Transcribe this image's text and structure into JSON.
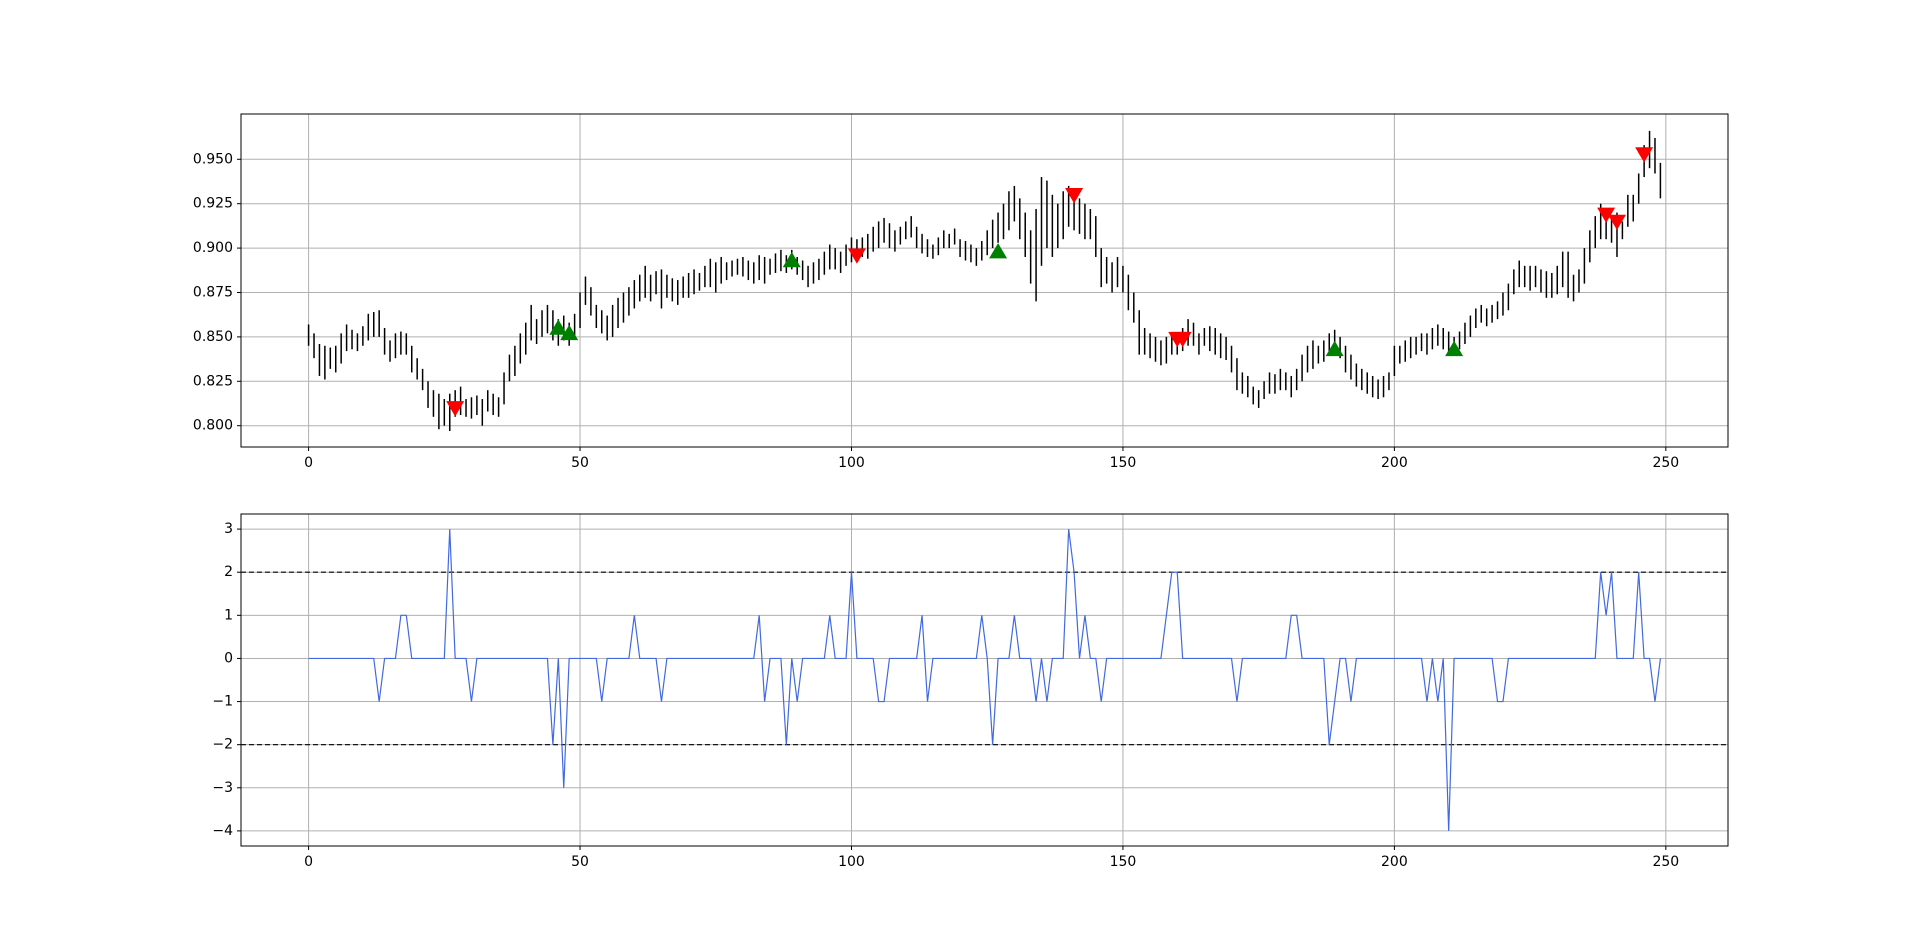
{
  "chart_data": [
    {
      "type": "hilo",
      "color": "#000000",
      "x": [
        0,
        1,
        2,
        3,
        4,
        5,
        6,
        7,
        8,
        9,
        10,
        11,
        12,
        13,
        14,
        15,
        16,
        17,
        18,
        19,
        20,
        21,
        22,
        23,
        24,
        25,
        26,
        27,
        28,
        29,
        30,
        31,
        32,
        33,
        34,
        35,
        36,
        37,
        38,
        39,
        40,
        41,
        42,
        43,
        44,
        45,
        46,
        47,
        48,
        49,
        50,
        51,
        52,
        53,
        54,
        55,
        56,
        57,
        58,
        59,
        60,
        61,
        62,
        63,
        64,
        65,
        66,
        67,
        68,
        69,
        70,
        71,
        72,
        73,
        74,
        75,
        76,
        77,
        78,
        79,
        80,
        81,
        82,
        83,
        84,
        85,
        86,
        87,
        88,
        89,
        90,
        91,
        92,
        93,
        94,
        95,
        96,
        97,
        98,
        99,
        100,
        101,
        102,
        103,
        104,
        105,
        106,
        107,
        108,
        109,
        110,
        111,
        112,
        113,
        114,
        115,
        116,
        117,
        118,
        119,
        120,
        121,
        122,
        123,
        124,
        125,
        126,
        127,
        128,
        129,
        130,
        131,
        132,
        133,
        134,
        135,
        136,
        137,
        138,
        139,
        140,
        141,
        142,
        143,
        144,
        145,
        146,
        147,
        148,
        149,
        150,
        151,
        152,
        153,
        154,
        155,
        156,
        157,
        158,
        159,
        160,
        161,
        162,
        163,
        164,
        165,
        166,
        167,
        168,
        169,
        170,
        171,
        172,
        173,
        174,
        175,
        176,
        177,
        178,
        179,
        180,
        181,
        182,
        183,
        184,
        185,
        186,
        187,
        188,
        189,
        190,
        191,
        192,
        193,
        194,
        195,
        196,
        197,
        198,
        199,
        200,
        201,
        202,
        203,
        204,
        205,
        206,
        207,
        208,
        209,
        210,
        211,
        212,
        213,
        214,
        215,
        216,
        217,
        218,
        219,
        220,
        221,
        222,
        223,
        224,
        225,
        226,
        227,
        228,
        229,
        230,
        231,
        232,
        233,
        234,
        235,
        236,
        237,
        238,
        239,
        240,
        241,
        242,
        243,
        244,
        245,
        246,
        247,
        248,
        249
      ],
      "high": [
        0.857,
        0.852,
        0.846,
        0.845,
        0.844,
        0.845,
        0.852,
        0.857,
        0.854,
        0.852,
        0.856,
        0.863,
        0.864,
        0.865,
        0.855,
        0.848,
        0.852,
        0.853,
        0.852,
        0.845,
        0.838,
        0.832,
        0.825,
        0.82,
        0.818,
        0.815,
        0.818,
        0.82,
        0.822,
        0.815,
        0.816,
        0.817,
        0.815,
        0.82,
        0.818,
        0.816,
        0.83,
        0.84,
        0.845,
        0.852,
        0.858,
        0.868,
        0.86,
        0.865,
        0.868,
        0.865,
        0.86,
        0.862,
        0.858,
        0.863,
        0.875,
        0.884,
        0.878,
        0.868,
        0.865,
        0.862,
        0.868,
        0.872,
        0.875,
        0.878,
        0.882,
        0.885,
        0.89,
        0.885,
        0.887,
        0.888,
        0.885,
        0.883,
        0.882,
        0.884,
        0.886,
        0.888,
        0.886,
        0.89,
        0.894,
        0.892,
        0.895,
        0.892,
        0.893,
        0.894,
        0.895,
        0.893,
        0.892,
        0.896,
        0.895,
        0.894,
        0.897,
        0.899,
        0.896,
        0.899,
        0.895,
        0.893,
        0.89,
        0.892,
        0.894,
        0.898,
        0.902,
        0.9,
        0.898,
        0.902,
        0.906,
        0.905,
        0.906,
        0.908,
        0.912,
        0.915,
        0.917,
        0.914,
        0.91,
        0.912,
        0.915,
        0.918,
        0.912,
        0.908,
        0.905,
        0.902,
        0.906,
        0.91,
        0.908,
        0.911,
        0.905,
        0.904,
        0.902,
        0.9,
        0.904,
        0.91,
        0.916,
        0.92,
        0.925,
        0.932,
        0.935,
        0.928,
        0.92,
        0.91,
        0.922,
        0.94,
        0.938,
        0.93,
        0.925,
        0.932,
        0.935,
        0.93,
        0.928,
        0.925,
        0.922,
        0.918,
        0.9,
        0.895,
        0.892,
        0.895,
        0.89,
        0.885,
        0.875,
        0.865,
        0.855,
        0.852,
        0.85,
        0.848,
        0.85,
        0.852,
        0.852,
        0.855,
        0.86,
        0.858,
        0.852,
        0.855,
        0.856,
        0.855,
        0.852,
        0.85,
        0.845,
        0.838,
        0.83,
        0.828,
        0.822,
        0.82,
        0.825,
        0.83,
        0.829,
        0.832,
        0.83,
        0.828,
        0.832,
        0.84,
        0.845,
        0.848,
        0.845,
        0.848,
        0.852,
        0.854,
        0.85,
        0.845,
        0.84,
        0.835,
        0.832,
        0.83,
        0.828,
        0.826,
        0.828,
        0.83,
        0.845,
        0.845,
        0.848,
        0.85,
        0.85,
        0.852,
        0.852,
        0.855,
        0.857,
        0.855,
        0.853,
        0.85,
        0.853,
        0.858,
        0.862,
        0.866,
        0.868,
        0.866,
        0.868,
        0.87,
        0.875,
        0.88,
        0.888,
        0.893,
        0.89,
        0.89,
        0.89,
        0.888,
        0.887,
        0.886,
        0.89,
        0.898,
        0.898,
        0.885,
        0.888,
        0.9,
        0.91,
        0.918,
        0.925,
        0.922,
        0.918,
        0.92,
        0.915,
        0.93,
        0.93,
        0.942,
        0.958,
        0.966,
        0.962,
        0.948
      ],
      "low": [
        0.845,
        0.838,
        0.828,
        0.826,
        0.832,
        0.83,
        0.835,
        0.842,
        0.843,
        0.842,
        0.845,
        0.848,
        0.85,
        0.85,
        0.84,
        0.836,
        0.838,
        0.84,
        0.84,
        0.83,
        0.826,
        0.82,
        0.81,
        0.805,
        0.798,
        0.8,
        0.797,
        0.805,
        0.806,
        0.805,
        0.804,
        0.806,
        0.8,
        0.808,
        0.806,
        0.805,
        0.812,
        0.825,
        0.828,
        0.835,
        0.84,
        0.848,
        0.846,
        0.85,
        0.852,
        0.848,
        0.845,
        0.848,
        0.845,
        0.85,
        0.855,
        0.868,
        0.862,
        0.855,
        0.852,
        0.848,
        0.85,
        0.855,
        0.858,
        0.862,
        0.866,
        0.87,
        0.872,
        0.87,
        0.874,
        0.866,
        0.872,
        0.87,
        0.868,
        0.872,
        0.872,
        0.874,
        0.876,
        0.878,
        0.878,
        0.875,
        0.88,
        0.882,
        0.884,
        0.885,
        0.884,
        0.882,
        0.88,
        0.882,
        0.88,
        0.885,
        0.886,
        0.887,
        0.886,
        0.888,
        0.885,
        0.882,
        0.878,
        0.88,
        0.882,
        0.885,
        0.888,
        0.888,
        0.886,
        0.89,
        0.892,
        0.893,
        0.895,
        0.894,
        0.898,
        0.9,
        0.903,
        0.9,
        0.898,
        0.902,
        0.905,
        0.906,
        0.9,
        0.897,
        0.895,
        0.894,
        0.896,
        0.9,
        0.9,
        0.902,
        0.895,
        0.893,
        0.892,
        0.89,
        0.893,
        0.896,
        0.9,
        0.903,
        0.905,
        0.91,
        0.915,
        0.905,
        0.895,
        0.88,
        0.87,
        0.89,
        0.9,
        0.895,
        0.9,
        0.905,
        0.912,
        0.91,
        0.908,
        0.905,
        0.905,
        0.895,
        0.878,
        0.88,
        0.875,
        0.878,
        0.875,
        0.865,
        0.858,
        0.84,
        0.84,
        0.838,
        0.836,
        0.834,
        0.835,
        0.84,
        0.84,
        0.842,
        0.845,
        0.845,
        0.84,
        0.845,
        0.842,
        0.84,
        0.838,
        0.837,
        0.83,
        0.82,
        0.818,
        0.816,
        0.812,
        0.81,
        0.815,
        0.818,
        0.818,
        0.82,
        0.82,
        0.816,
        0.82,
        0.825,
        0.83,
        0.832,
        0.835,
        0.836,
        0.84,
        0.842,
        0.838,
        0.83,
        0.826,
        0.822,
        0.82,
        0.818,
        0.816,
        0.815,
        0.816,
        0.82,
        0.828,
        0.835,
        0.836,
        0.838,
        0.84,
        0.842,
        0.84,
        0.843,
        0.845,
        0.843,
        0.84,
        0.842,
        0.843,
        0.846,
        0.85,
        0.855,
        0.858,
        0.856,
        0.858,
        0.86,
        0.862,
        0.865,
        0.874,
        0.878,
        0.878,
        0.876,
        0.878,
        0.875,
        0.872,
        0.872,
        0.874,
        0.878,
        0.872,
        0.87,
        0.875,
        0.88,
        0.892,
        0.9,
        0.905,
        0.905,
        0.903,
        0.895,
        0.905,
        0.912,
        0.915,
        0.925,
        0.94,
        0.945,
        0.942,
        0.928
      ],
      "sell_signals": {
        "color": "#ff0000",
        "x": [
          27,
          101,
          141,
          160,
          161,
          239,
          241,
          246
        ],
        "y": [
          0.81,
          0.896,
          0.93,
          0.849,
          0.849,
          0.919,
          0.915,
          0.953
        ]
      },
      "buy_signals": {
        "color": "#008000",
        "x": [
          46,
          48,
          89,
          127,
          189,
          211
        ],
        "y": [
          0.855,
          0.852,
          0.893,
          0.898,
          0.843,
          0.843
        ]
      },
      "xlim": [
        -12.45,
        261.45
      ],
      "ylim": [
        0.788,
        0.9755
      ],
      "xticks": [
        0,
        50,
        100,
        150,
        200,
        250
      ],
      "yticks": [
        {
          "value": 0.8,
          "label": "0.800"
        },
        0.825,
        {
          "value": 0.85,
          "label": "0.850"
        },
        0.875,
        {
          "value": 0.9,
          "label": "0.900"
        },
        0.925,
        {
          "value": 0.95,
          "label": "0.950"
        }
      ],
      "grid": true
    },
    {
      "type": "line",
      "color": "#4169e1",
      "x": [
        0,
        1,
        2,
        3,
        4,
        5,
        6,
        7,
        8,
        9,
        10,
        11,
        12,
        13,
        14,
        15,
        16,
        17,
        18,
        19,
        20,
        21,
        22,
        23,
        24,
        25,
        26,
        27,
        28,
        29,
        30,
        31,
        32,
        33,
        34,
        35,
        36,
        37,
        38,
        39,
        40,
        41,
        42,
        43,
        44,
        45,
        46,
        47,
        48,
        49,
        50,
        51,
        52,
        53,
        54,
        55,
        56,
        57,
        58,
        59,
        60,
        61,
        62,
        63,
        64,
        65,
        66,
        67,
        68,
        69,
        70,
        71,
        72,
        73,
        74,
        75,
        76,
        77,
        78,
        79,
        80,
        81,
        82,
        83,
        84,
        85,
        86,
        87,
        88,
        89,
        90,
        91,
        92,
        93,
        94,
        95,
        96,
        97,
        98,
        99,
        100,
        101,
        102,
        103,
        104,
        105,
        106,
        107,
        108,
        109,
        110,
        111,
        112,
        113,
        114,
        115,
        116,
        117,
        118,
        119,
        120,
        121,
        122,
        123,
        124,
        125,
        126,
        127,
        128,
        129,
        130,
        131,
        132,
        133,
        134,
        135,
        136,
        137,
        138,
        139,
        140,
        141,
        142,
        143,
        144,
        145,
        146,
        147,
        148,
        149,
        150,
        151,
        152,
        153,
        154,
        155,
        156,
        157,
        158,
        159,
        160,
        161,
        162,
        163,
        164,
        165,
        166,
        167,
        168,
        169,
        170,
        171,
        172,
        173,
        174,
        175,
        176,
        177,
        178,
        179,
        180,
        181,
        182,
        183,
        184,
        185,
        186,
        187,
        188,
        189,
        190,
        191,
        192,
        193,
        194,
        195,
        196,
        197,
        198,
        199,
        200,
        201,
        202,
        203,
        204,
        205,
        206,
        207,
        208,
        209,
        210,
        211,
        212,
        213,
        214,
        215,
        216,
        217,
        218,
        219,
        220,
        221,
        222,
        223,
        224,
        225,
        226,
        227,
        228,
        229,
        230,
        231,
        232,
        233,
        234,
        235,
        236,
        237,
        238,
        239,
        240,
        241,
        242,
        243,
        244,
        245,
        246,
        247,
        248,
        249
      ],
      "values": [
        0,
        0,
        0,
        0,
        0,
        0,
        0,
        0,
        0,
        0,
        0,
        0,
        0,
        -1,
        0,
        0,
        0,
        1,
        1,
        0,
        0,
        0,
        0,
        0,
        0,
        0,
        3,
        0,
        0,
        0,
        -1,
        0,
        0,
        0,
        0,
        0,
        0,
        0,
        0,
        0,
        0,
        0,
        0,
        0,
        0,
        -2,
        0,
        -3,
        0,
        0,
        0,
        0,
        0,
        0,
        -1,
        0,
        0,
        0,
        0,
        0,
        1,
        0,
        0,
        0,
        0,
        -1,
        0,
        0,
        0,
        0,
        0,
        0,
        0,
        0,
        0,
        0,
        0,
        0,
        0,
        0,
        0,
        0,
        0,
        1,
        -1,
        0,
        0,
        0,
        -2,
        0,
        -1,
        0,
        0,
        0,
        0,
        0,
        1,
        0,
        0,
        0,
        2,
        0,
        0,
        0,
        0,
        -1,
        -1,
        0,
        0,
        0,
        0,
        0,
        0,
        1,
        -1,
        0,
        0,
        0,
        0,
        0,
        0,
        0,
        0,
        0,
        1,
        0,
        -2,
        0,
        0,
        0,
        1,
        0,
        0,
        0,
        -1,
        0,
        -1,
        0,
        0,
        0,
        3,
        2,
        0,
        1,
        0,
        0,
        -1,
        0,
        0,
        0,
        0,
        0,
        0,
        0,
        0,
        0,
        0,
        0,
        1,
        2,
        2,
        0,
        0,
        0,
        0,
        0,
        0,
        0,
        0,
        0,
        0,
        -1,
        0,
        0,
        0,
        0,
        0,
        0,
        0,
        0,
        0,
        1,
        1,
        0,
        0,
        0,
        0,
        0,
        -2,
        -1,
        0,
        0,
        -1,
        0,
        0,
        0,
        0,
        0,
        0,
        0,
        0,
        0,
        0,
        0,
        0,
        0,
        -1,
        0,
        -1,
        0,
        -4,
        0,
        0,
        0,
        0,
        0,
        0,
        0,
        0,
        -1,
        -1,
        0,
        0,
        0,
        0,
        0,
        0,
        0,
        0,
        0,
        0,
        0,
        0,
        0,
        0,
        0,
        0,
        0,
        2,
        1,
        2,
        0,
        0,
        0,
        0,
        2,
        0,
        0,
        -1,
        0
      ],
      "thresholds": [
        2,
        -2
      ],
      "xlim": [
        -12.45,
        261.45
      ],
      "ylim": [
        -4.35,
        3.35
      ],
      "xticks": [
        0,
        50,
        100,
        150,
        200,
        250
      ],
      "yticks": [
        {
          "value": -4,
          "label": "−4"
        },
        {
          "value": -3,
          "label": "−3"
        },
        {
          "value": -2,
          "label": "−2"
        },
        {
          "value": -1,
          "label": "−1"
        },
        0,
        1,
        2,
        3
      ],
      "grid": true
    }
  ]
}
